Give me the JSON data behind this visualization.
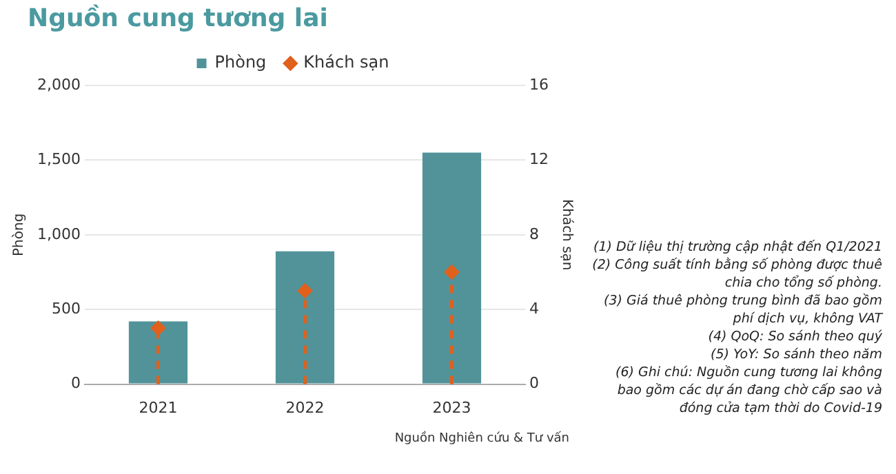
{
  "chart_data": {
    "type": "bar",
    "title": "Nguồn cung tương lai",
    "categories": [
      "2021",
      "2022",
      "2023"
    ],
    "series": [
      {
        "name": "Phòng",
        "color": "#52939a",
        "values": [
          420,
          890,
          1550
        ]
      },
      {
        "name": "Khách sạn",
        "type": "lollipop",
        "axis": "y2",
        "color": "#e0601c",
        "values": [
          3,
          5,
          6
        ],
        "marker": "diamond",
        "line_style": "dashed"
      }
    ],
    "ylabel": "Phòng",
    "y2label": "Khách sạn",
    "ylim": [
      0,
      2000
    ],
    "yticks": [
      0,
      500,
      {
        "value": 1000,
        "label": "1,000"
      },
      {
        "value": 1500,
        "label": "1,500"
      },
      {
        "value": 2000,
        "label": "2,000"
      }
    ],
    "y2lim": [
      0,
      16
    ],
    "y2ticks": [
      0,
      4,
      8,
      12,
      16
    ],
    "grid": "y",
    "legend": "top",
    "annotations": [
      "Nguồn Nghiên cứu & Tư vấn",
      "(1) Dữ liệu thị trường cập nhật đến Q1/2021",
      "(2) Công suất tính bằng số phòng được thuê chia cho tổng số phòng.",
      "(3) Giá thuê phòng trung bình đã bao gồm phí dịch vụ, không VAT",
      "(4) QoQ: So sánh theo quý",
      "(5) YoY: So sánh theo năm",
      "(6) Ghi chú: Nguồn cung tương lai không bao gồm các dự án đang chờ cấp sao và đóng cửa tạm thời do Covid-19"
    ]
  }
}
